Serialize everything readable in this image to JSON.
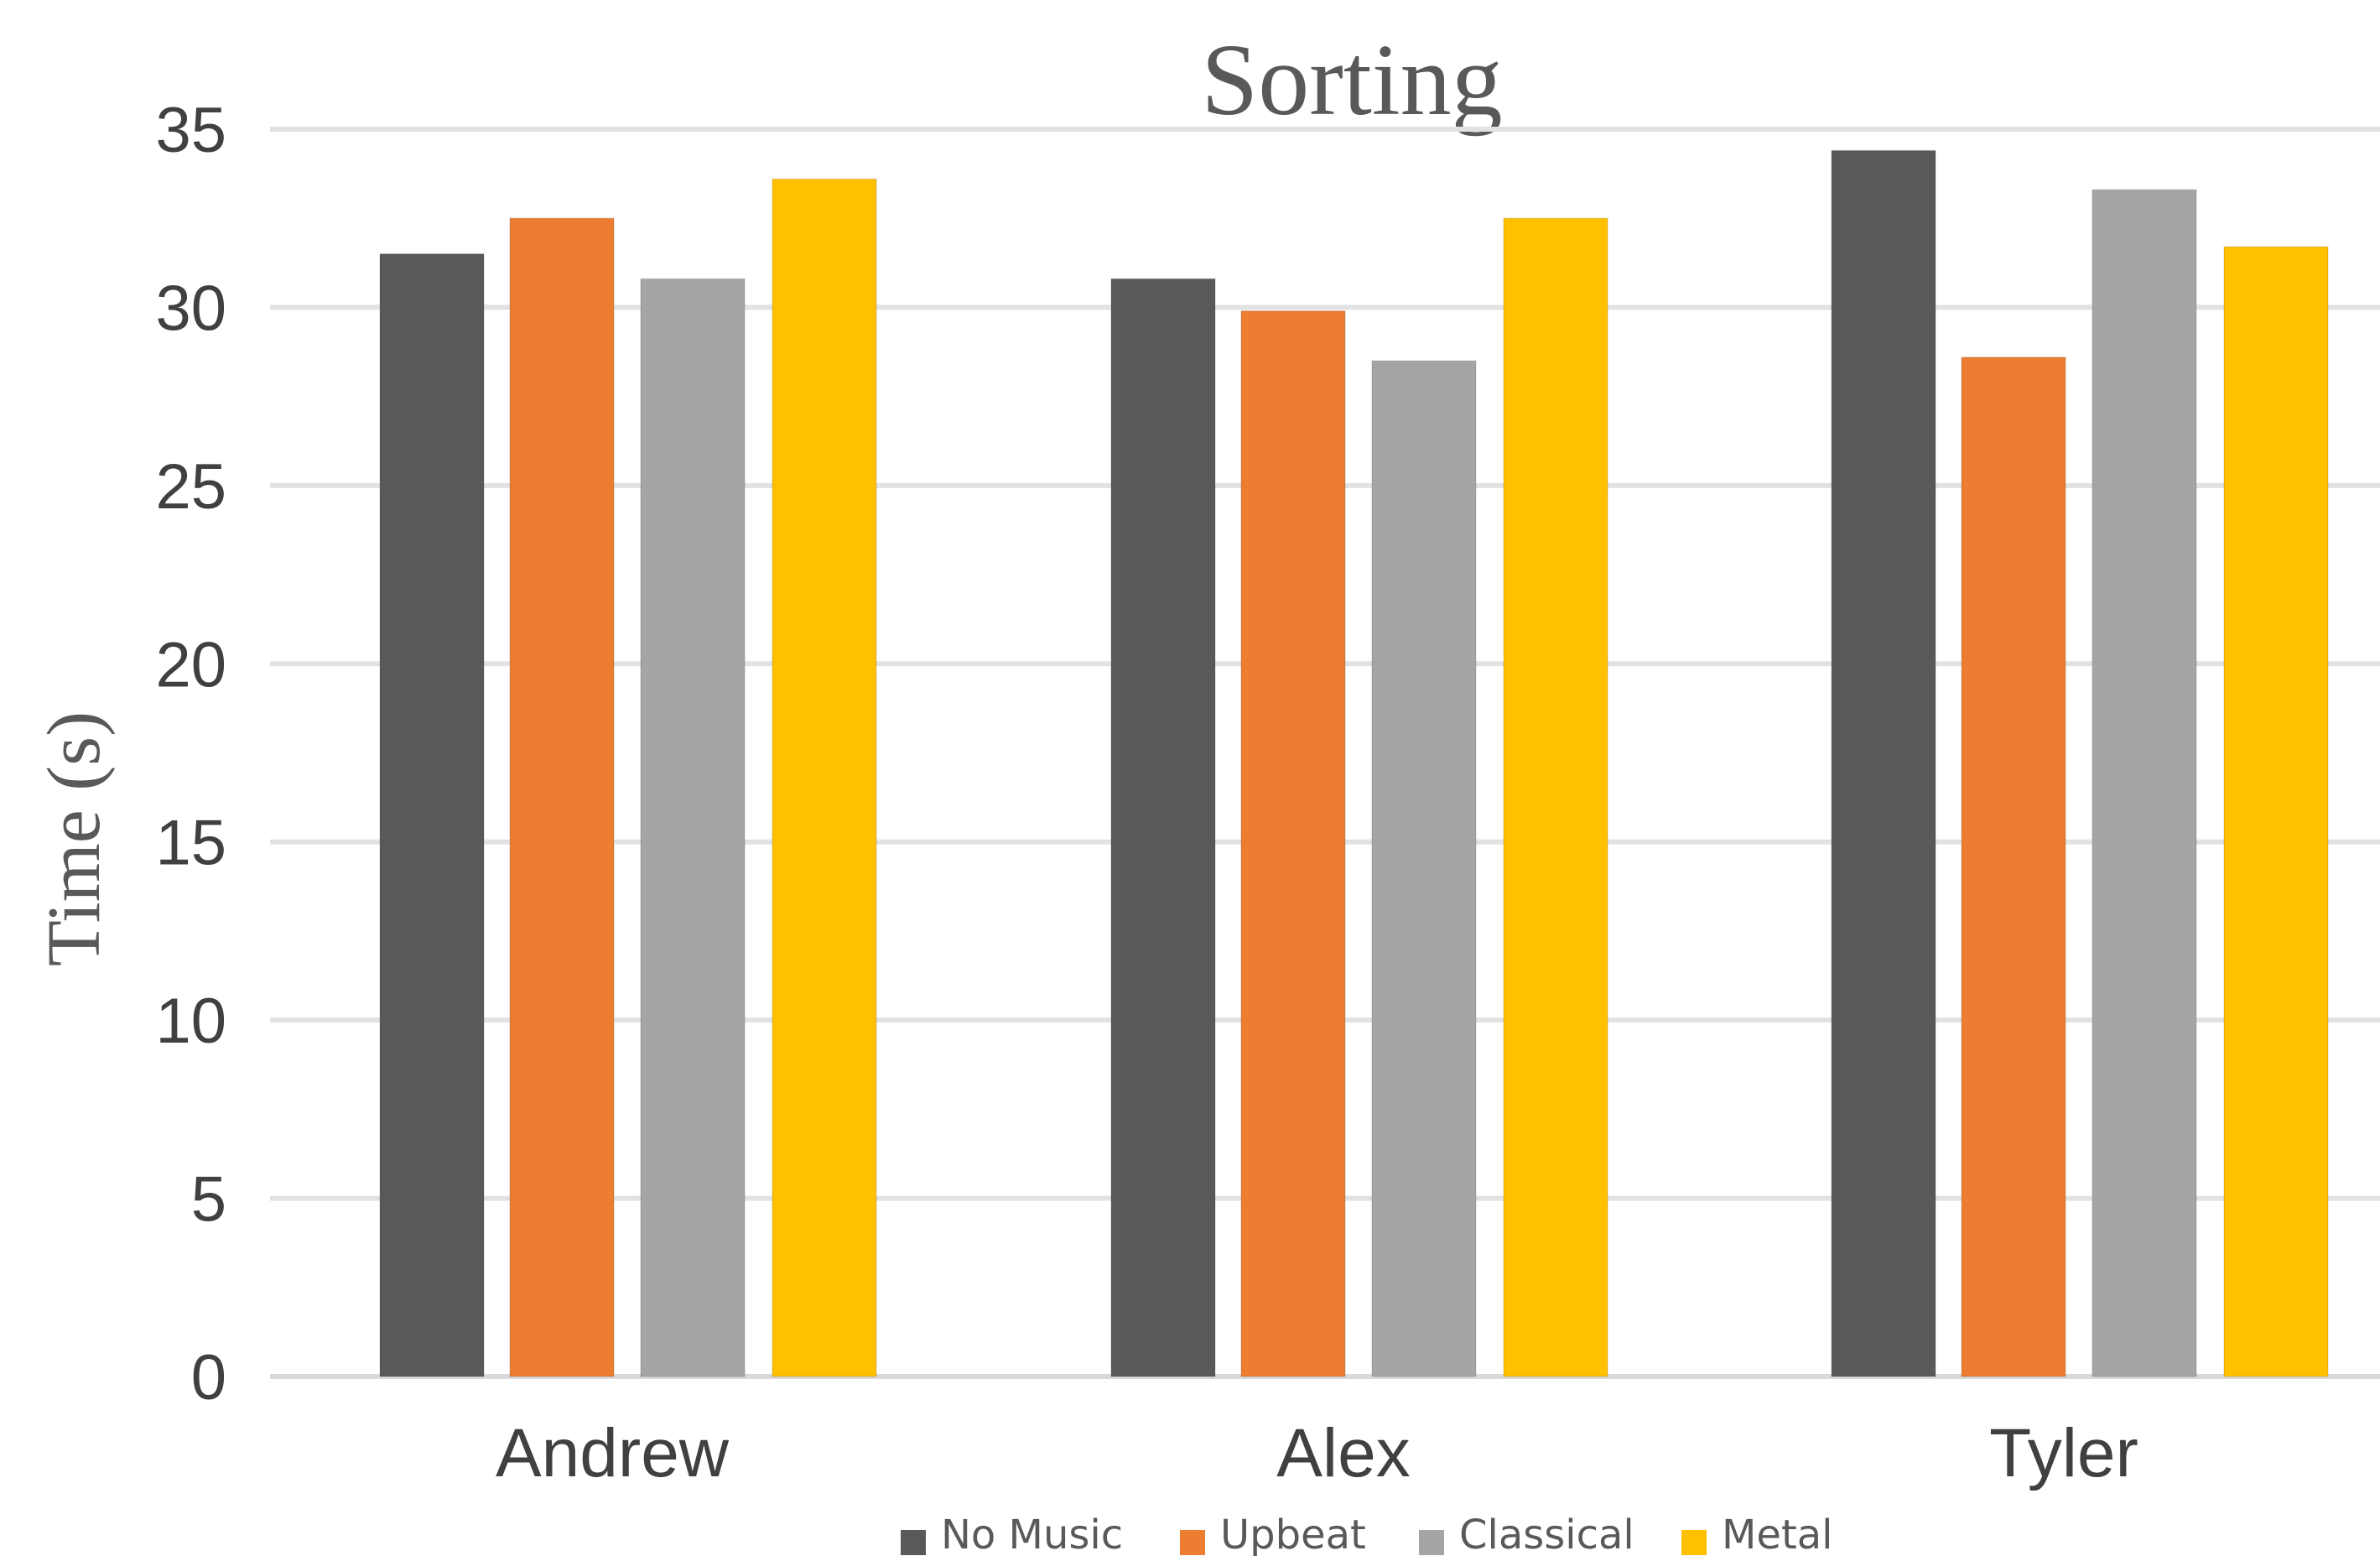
{
  "chart_data": {
    "type": "bar",
    "title": "Sorting",
    "xlabel": "",
    "ylabel": "Time (s)",
    "ylim": [
      0,
      35
    ],
    "yticks": [
      0,
      5,
      10,
      15,
      20,
      25,
      30,
      35
    ],
    "grid": true,
    "legend_position": "bottom",
    "categories": [
      "Andrew",
      "Alex",
      "Tyler"
    ],
    "series": [
      {
        "name": "No Music",
        "color": "#595959",
        "values": [
          31.5,
          30.8,
          34.4
        ]
      },
      {
        "name": "Upbeat",
        "color": "#ed7d31",
        "values": [
          32.5,
          29.9,
          28.6
        ]
      },
      {
        "name": "Classical",
        "color": "#a5a5a5",
        "values": [
          30.8,
          28.5,
          33.3
        ]
      },
      {
        "name": "Metal",
        "color": "#ffc000",
        "values": [
          33.6,
          32.5,
          31.7
        ]
      }
    ]
  }
}
